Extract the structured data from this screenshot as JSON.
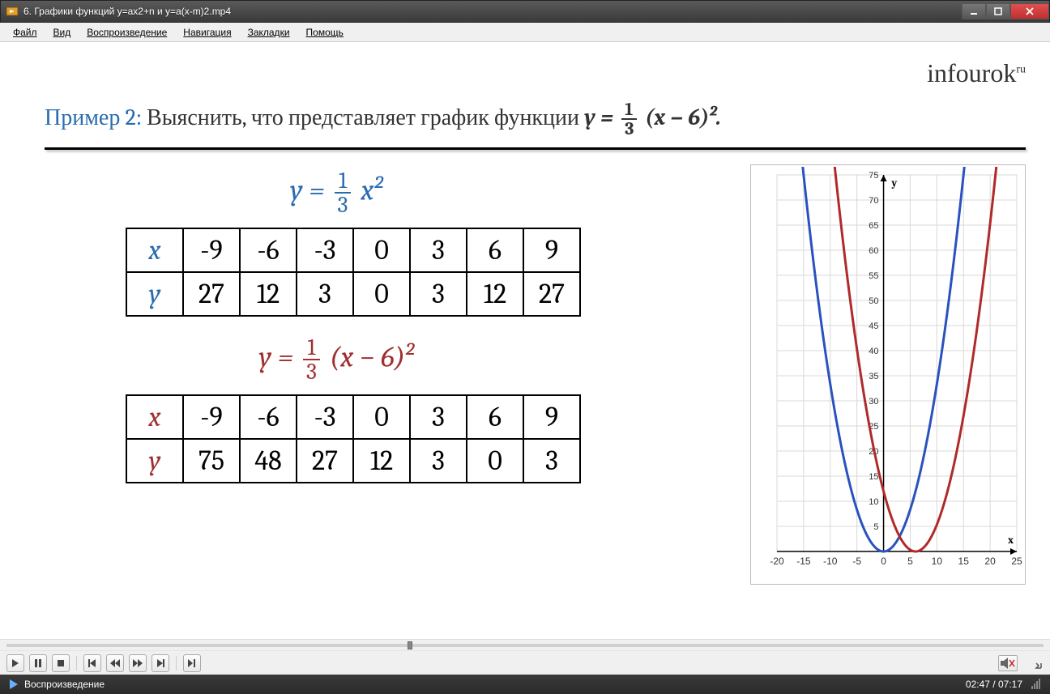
{
  "window": {
    "title": "6. Графики функций y=ax2+n и y=a(x-m)2.mp4"
  },
  "menu": {
    "items": [
      "Файл",
      "Вид",
      "Воспроизведение",
      "Навигация",
      "Закладки",
      "Помощь"
    ]
  },
  "brand": {
    "name": "infourok",
    "tld": "ru"
  },
  "slide": {
    "example_label": "Пример 2:",
    "prompt_prefix": "Выяснить, что представляет график функции ",
    "formula_main_y": "y",
    "formula_main_frac_num": "1",
    "formula_main_frac_den": "3",
    "formula_main_tail": "(x − 6)²",
    "formula1_y": "y",
    "formula1_frac_num": "1",
    "formula1_frac_den": "3",
    "formula1_tail": "x²",
    "formula2_y": "y",
    "formula2_frac_num": "1",
    "formula2_frac_den": "3",
    "formula2_tail": "(x − 6)²",
    "table1": {
      "rowlabel_x": "x",
      "rowlabel_y": "y",
      "x": [
        "-9",
        "-6",
        "-3",
        "0",
        "3",
        "6",
        "9"
      ],
      "y": [
        "27",
        "12",
        "3",
        "0",
        "3",
        "12",
        "27"
      ]
    },
    "table2": {
      "rowlabel_x": "x",
      "rowlabel_y": "y",
      "x": [
        "-9",
        "-6",
        "-3",
        "0",
        "3",
        "6",
        "9"
      ],
      "y": [
        "75",
        "48",
        "27",
        "12",
        "3",
        "0",
        "3"
      ]
    }
  },
  "chart": {
    "type": "line",
    "xlim": [
      -20,
      25
    ],
    "ylim": [
      0,
      75
    ],
    "xticks": [
      -20,
      -15,
      -10,
      -5,
      0,
      5,
      10,
      15,
      20,
      25
    ],
    "yticks": [
      5,
      10,
      15,
      20,
      25,
      30,
      35,
      40,
      45,
      50,
      55,
      60,
      65,
      70,
      75
    ],
    "xlabel": "x",
    "ylabel": "y",
    "background_color": "#ffffff",
    "grid_color": "#d8d8d8",
    "axis_color": "#000000",
    "line_width": 3,
    "series": [
      {
        "name": "y=(1/3)x^2",
        "color": "#2a52be",
        "vertex_x": 0
      },
      {
        "name": "y=(1/3)(x-6)^2",
        "color": "#b02a2a",
        "vertex_x": 6
      }
    ]
  },
  "player": {
    "seek_progress": 0.387,
    "time_current": "02:47",
    "time_total": "07:17",
    "status_label": "Воспроизведение"
  },
  "colors": {
    "accent_blue": "#2a6bb0",
    "accent_red": "#a03030",
    "chart_blue": "#2a52be",
    "chart_red": "#b02a2a"
  }
}
